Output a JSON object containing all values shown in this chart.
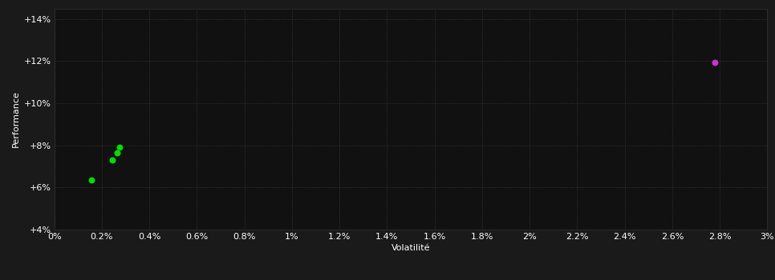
{
  "background_color": "#1a1a1a",
  "plot_bg_color": "#111111",
  "grid_color": "#444444",
  "text_color": "#ffffff",
  "xlabel": "Volatilité",
  "ylabel": "Performance",
  "xlim": [
    0.0,
    0.03
  ],
  "ylim": [
    0.04,
    0.145
  ],
  "xtick_vals": [
    0.0,
    0.002,
    0.004,
    0.006,
    0.008,
    0.01,
    0.012,
    0.014,
    0.016,
    0.018,
    0.02,
    0.022,
    0.024,
    0.026,
    0.028,
    0.03
  ],
  "ytick_vals": [
    0.04,
    0.06,
    0.08,
    0.1,
    0.12,
    0.14
  ],
  "green_points": [
    [
      0.00155,
      0.0635
    ],
    [
      0.00245,
      0.073
    ],
    [
      0.00265,
      0.0765
    ],
    [
      0.00275,
      0.079
    ]
  ],
  "purple_points": [
    [
      0.0278,
      0.1195
    ]
  ],
  "green_color": "#00dd00",
  "purple_color": "#cc33cc",
  "marker_size": 22,
  "grid_alpha": 1.0,
  "axis_fontsize": 8,
  "tick_fontsize": 8
}
